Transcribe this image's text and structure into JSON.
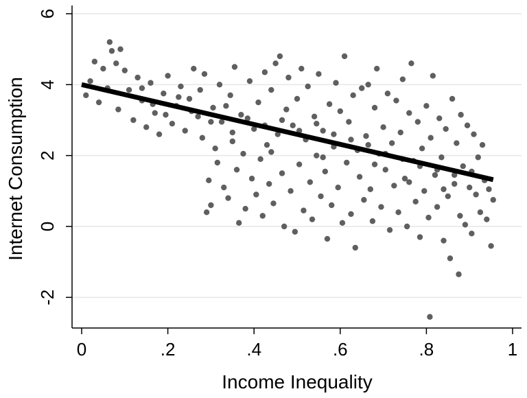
{
  "chart_data": {
    "type": "scatter",
    "title": "",
    "xlabel": "Income Inequality",
    "ylabel": "Internet Consumption",
    "xlim": [
      0,
      1
    ],
    "ylim": [
      -2.8,
      6.2
    ],
    "x_ticks": [
      {
        "value": 0,
        "label": "0"
      },
      {
        "value": 0.2,
        "label": ".2"
      },
      {
        "value": 0.4,
        "label": ".4"
      },
      {
        "value": 0.6,
        "label": ".6"
      },
      {
        "value": 0.8,
        "label": ".8"
      },
      {
        "value": 1,
        "label": "1"
      }
    ],
    "y_ticks": [
      {
        "value": -2,
        "label": "-2"
      },
      {
        "value": 0,
        "label": "0"
      },
      {
        "value": 2,
        "label": "2"
      },
      {
        "value": 4,
        "label": "4"
      },
      {
        "value": 6,
        "label": "6"
      }
    ],
    "grid": "horizontal",
    "legend": "none",
    "colors": {
      "points": "#5f5f5f",
      "fit_line": "#000000",
      "grid": "#e6e6e6",
      "axis": "#000000"
    },
    "fit_line": {
      "x": [
        0,
        0.955
      ],
      "y": [
        4.0,
        1.32
      ]
    },
    "points": [
      {
        "x": 0.01,
        "y": 3.7
      },
      {
        "x": 0.02,
        "y": 4.1
      },
      {
        "x": 0.03,
        "y": 4.65
      },
      {
        "x": 0.04,
        "y": 3.5
      },
      {
        "x": 0.05,
        "y": 4.45
      },
      {
        "x": 0.06,
        "y": 3.9
      },
      {
        "x": 0.065,
        "y": 5.2
      },
      {
        "x": 0.07,
        "y": 4.95
      },
      {
        "x": 0.08,
        "y": 4.6
      },
      {
        "x": 0.085,
        "y": 3.3
      },
      {
        "x": 0.09,
        "y": 5.0
      },
      {
        "x": 0.1,
        "y": 4.4
      },
      {
        "x": 0.11,
        "y": 3.85
      },
      {
        "x": 0.12,
        "y": 3.0
      },
      {
        "x": 0.13,
        "y": 4.2
      },
      {
        "x": 0.14,
        "y": 3.55
      },
      {
        "x": 0.15,
        "y": 2.8
      },
      {
        "x": 0.16,
        "y": 4.05
      },
      {
        "x": 0.17,
        "y": 3.2
      },
      {
        "x": 0.18,
        "y": 2.6
      },
      {
        "x": 0.19,
        "y": 3.75
      },
      {
        "x": 0.2,
        "y": 4.25
      },
      {
        "x": 0.21,
        "y": 2.9
      },
      {
        "x": 0.22,
        "y": 3.4
      },
      {
        "x": 0.23,
        "y": 3.95
      },
      {
        "x": 0.24,
        "y": 2.7
      },
      {
        "x": 0.25,
        "y": 3.6
      },
      {
        "x": 0.26,
        "y": 4.45
      },
      {
        "x": 0.27,
        "y": 3.1
      },
      {
        "x": 0.28,
        "y": 2.5
      },
      {
        "x": 0.285,
        "y": 4.3
      },
      {
        "x": 0.29,
        "y": 0.4
      },
      {
        "x": 0.295,
        "y": 1.3
      },
      {
        "x": 0.3,
        "y": 0.6
      },
      {
        "x": 0.305,
        "y": 3.35
      },
      {
        "x": 0.31,
        "y": 2.2
      },
      {
        "x": 0.315,
        "y": 1.8
      },
      {
        "x": 0.32,
        "y": 4.0
      },
      {
        "x": 0.325,
        "y": 2.95
      },
      {
        "x": 0.33,
        "y": 1.1
      },
      {
        "x": 0.34,
        "y": 0.8
      },
      {
        "x": 0.345,
        "y": 3.7
      },
      {
        "x": 0.35,
        "y": 2.4
      },
      {
        "x": 0.355,
        "y": 4.5
      },
      {
        "x": 0.36,
        "y": 1.6
      },
      {
        "x": 0.365,
        "y": 0.1
      },
      {
        "x": 0.37,
        "y": 3.15
      },
      {
        "x": 0.375,
        "y": 2.05
      },
      {
        "x": 0.38,
        "y": 0.5
      },
      {
        "x": 0.39,
        "y": 4.1
      },
      {
        "x": 0.395,
        "y": 1.35
      },
      {
        "x": 0.4,
        "y": 2.75
      },
      {
        "x": 0.405,
        "y": 0.9
      },
      {
        "x": 0.41,
        "y": 3.5
      },
      {
        "x": 0.415,
        "y": 1.9
      },
      {
        "x": 0.42,
        "y": 0.3
      },
      {
        "x": 0.425,
        "y": 4.35
      },
      {
        "x": 0.43,
        "y": 2.3
      },
      {
        "x": 0.435,
        "y": 1.2
      },
      {
        "x": 0.44,
        "y": 3.85
      },
      {
        "x": 0.445,
        "y": 0.65
      },
      {
        "x": 0.45,
        "y": 4.6
      },
      {
        "x": 0.455,
        "y": 2.6
      },
      {
        "x": 0.46,
        "y": 4.8
      },
      {
        "x": 0.465,
        "y": 1.5
      },
      {
        "x": 0.47,
        "y": 0.0
      },
      {
        "x": 0.475,
        "y": 3.3
      },
      {
        "x": 0.48,
        "y": 4.2
      },
      {
        "x": 0.485,
        "y": 1.0
      },
      {
        "x": 0.49,
        "y": 2.85
      },
      {
        "x": 0.495,
        "y": -0.15
      },
      {
        "x": 0.5,
        "y": 3.6
      },
      {
        "x": 0.505,
        "y": 1.75
      },
      {
        "x": 0.51,
        "y": 4.45
      },
      {
        "x": 0.515,
        "y": 0.45
      },
      {
        "x": 0.52,
        "y": 2.45
      },
      {
        "x": 0.525,
        "y": 3.95
      },
      {
        "x": 0.53,
        "y": 1.25
      },
      {
        "x": 0.535,
        "y": 0.2
      },
      {
        "x": 0.54,
        "y": 3.1
      },
      {
        "x": 0.545,
        "y": 2.0
      },
      {
        "x": 0.55,
        "y": 4.3
      },
      {
        "x": 0.555,
        "y": 0.85
      },
      {
        "x": 0.56,
        "y": 2.7
      },
      {
        "x": 0.565,
        "y": 1.55
      },
      {
        "x": 0.57,
        "y": -0.35
      },
      {
        "x": 0.575,
        "y": 3.45
      },
      {
        "x": 0.58,
        "y": 0.6
      },
      {
        "x": 0.585,
        "y": 2.25
      },
      {
        "x": 0.59,
        "y": 4.05
      },
      {
        "x": 0.595,
        "y": 1.1
      },
      {
        "x": 0.6,
        "y": 3.25
      },
      {
        "x": 0.605,
        "y": 0.1
      },
      {
        "x": 0.61,
        "y": 4.8
      },
      {
        "x": 0.615,
        "y": 1.8
      },
      {
        "x": 0.62,
        "y": 2.95
      },
      {
        "x": 0.625,
        "y": 0.35
      },
      {
        "x": 0.63,
        "y": 3.7
      },
      {
        "x": 0.635,
        "y": -0.6
      },
      {
        "x": 0.64,
        "y": 2.15
      },
      {
        "x": 0.645,
        "y": 1.4
      },
      {
        "x": 0.65,
        "y": 3.9
      },
      {
        "x": 0.655,
        "y": 0.75
      },
      {
        "x": 0.66,
        "y": 2.55
      },
      {
        "x": 0.665,
        "y": 4.0
      },
      {
        "x": 0.67,
        "y": 1.05
      },
      {
        "x": 0.675,
        "y": 0.15
      },
      {
        "x": 0.68,
        "y": 3.35
      },
      {
        "x": 0.685,
        "y": 4.45
      },
      {
        "x": 0.69,
        "y": 2.05
      },
      {
        "x": 0.695,
        "y": 0.55
      },
      {
        "x": 0.7,
        "y": 2.8
      },
      {
        "x": 0.705,
        "y": 1.6
      },
      {
        "x": 0.71,
        "y": 3.75
      },
      {
        "x": 0.715,
        "y": -0.1
      },
      {
        "x": 0.72,
        "y": 2.35
      },
      {
        "x": 0.725,
        "y": 1.15
      },
      {
        "x": 0.73,
        "y": 3.55
      },
      {
        "x": 0.735,
        "y": 0.4
      },
      {
        "x": 0.74,
        "y": 2.65
      },
      {
        "x": 0.745,
        "y": 4.15
      },
      {
        "x": 0.75,
        "y": 1.35
      },
      {
        "x": 0.755,
        "y": 0.0
      },
      {
        "x": 0.76,
        "y": 3.2
      },
      {
        "x": 0.765,
        "y": 4.6
      },
      {
        "x": 0.77,
        "y": 1.85
      },
      {
        "x": 0.775,
        "y": 0.7
      },
      {
        "x": 0.78,
        "y": 2.95
      },
      {
        "x": 0.785,
        "y": -0.3
      },
      {
        "x": 0.79,
        "y": 2.2
      },
      {
        "x": 0.795,
        "y": 1.0
      },
      {
        "x": 0.8,
        "y": 3.4
      },
      {
        "x": 0.805,
        "y": 0.25
      },
      {
        "x": 0.808,
        "y": -2.55
      },
      {
        "x": 0.81,
        "y": 2.5
      },
      {
        "x": 0.815,
        "y": 4.25
      },
      {
        "x": 0.82,
        "y": 1.45
      },
      {
        "x": 0.825,
        "y": 0.55
      },
      {
        "x": 0.83,
        "y": 3.05
      },
      {
        "x": 0.835,
        "y": 1.95
      },
      {
        "x": 0.84,
        "y": -0.4
      },
      {
        "x": 0.845,
        "y": 2.75
      },
      {
        "x": 0.85,
        "y": 0.85
      },
      {
        "x": 0.855,
        "y": -0.9
      },
      {
        "x": 0.86,
        "y": 3.6
      },
      {
        "x": 0.865,
        "y": 1.2
      },
      {
        "x": 0.87,
        "y": 2.35
      },
      {
        "x": 0.875,
        "y": -1.35
      },
      {
        "x": 0.878,
        "y": 0.3
      },
      {
        "x": 0.88,
        "y": 3.15
      },
      {
        "x": 0.885,
        "y": 1.7
      },
      {
        "x": 0.89,
        "y": 0.05
      },
      {
        "x": 0.895,
        "y": 2.85
      },
      {
        "x": 0.9,
        "y": 1.1
      },
      {
        "x": 0.905,
        "y": -0.2
      },
      {
        "x": 0.91,
        "y": 2.6
      },
      {
        "x": 0.915,
        "y": 0.9
      },
      {
        "x": 0.92,
        "y": 1.95
      },
      {
        "x": 0.925,
        "y": 0.4
      },
      {
        "x": 0.93,
        "y": 2.3
      },
      {
        "x": 0.935,
        "y": 1.3
      },
      {
        "x": 0.94,
        "y": 0.2
      },
      {
        "x": 0.945,
        "y": 1.05
      },
      {
        "x": 0.95,
        "y": -0.55
      },
      {
        "x": 0.955,
        "y": 0.75
      },
      {
        "x": 0.14,
        "y": 3.9
      },
      {
        "x": 0.165,
        "y": 3.45
      },
      {
        "x": 0.195,
        "y": 3.15
      },
      {
        "x": 0.225,
        "y": 3.65
      },
      {
        "x": 0.255,
        "y": 3.25
      },
      {
        "x": 0.275,
        "y": 3.85
      },
      {
        "x": 0.335,
        "y": 3.4
      },
      {
        "x": 0.385,
        "y": 3.05
      },
      {
        "x": 0.425,
        "y": 2.85
      },
      {
        "x": 0.465,
        "y": 3.0
      },
      {
        "x": 0.505,
        "y": 2.7
      },
      {
        "x": 0.545,
        "y": 2.9
      },
      {
        "x": 0.585,
        "y": 2.6
      },
      {
        "x": 0.625,
        "y": 2.45
      },
      {
        "x": 0.665,
        "y": 2.3
      },
      {
        "x": 0.705,
        "y": 2.05
      },
      {
        "x": 0.745,
        "y": 1.9
      },
      {
        "x": 0.785,
        "y": 1.7
      },
      {
        "x": 0.825,
        "y": 1.6
      },
      {
        "x": 0.865,
        "y": 1.45
      },
      {
        "x": 0.905,
        "y": 1.55
      },
      {
        "x": 0.44,
        "y": 2.1
      },
      {
        "x": 0.56,
        "y": 1.95
      },
      {
        "x": 0.68,
        "y": 1.75
      },
      {
        "x": 0.76,
        "y": 1.25
      },
      {
        "x": 0.84,
        "y": 1.05
      },
      {
        "x": 0.35,
        "y": 2.65
      },
      {
        "x": 0.3,
        "y": 2.95
      }
    ]
  }
}
